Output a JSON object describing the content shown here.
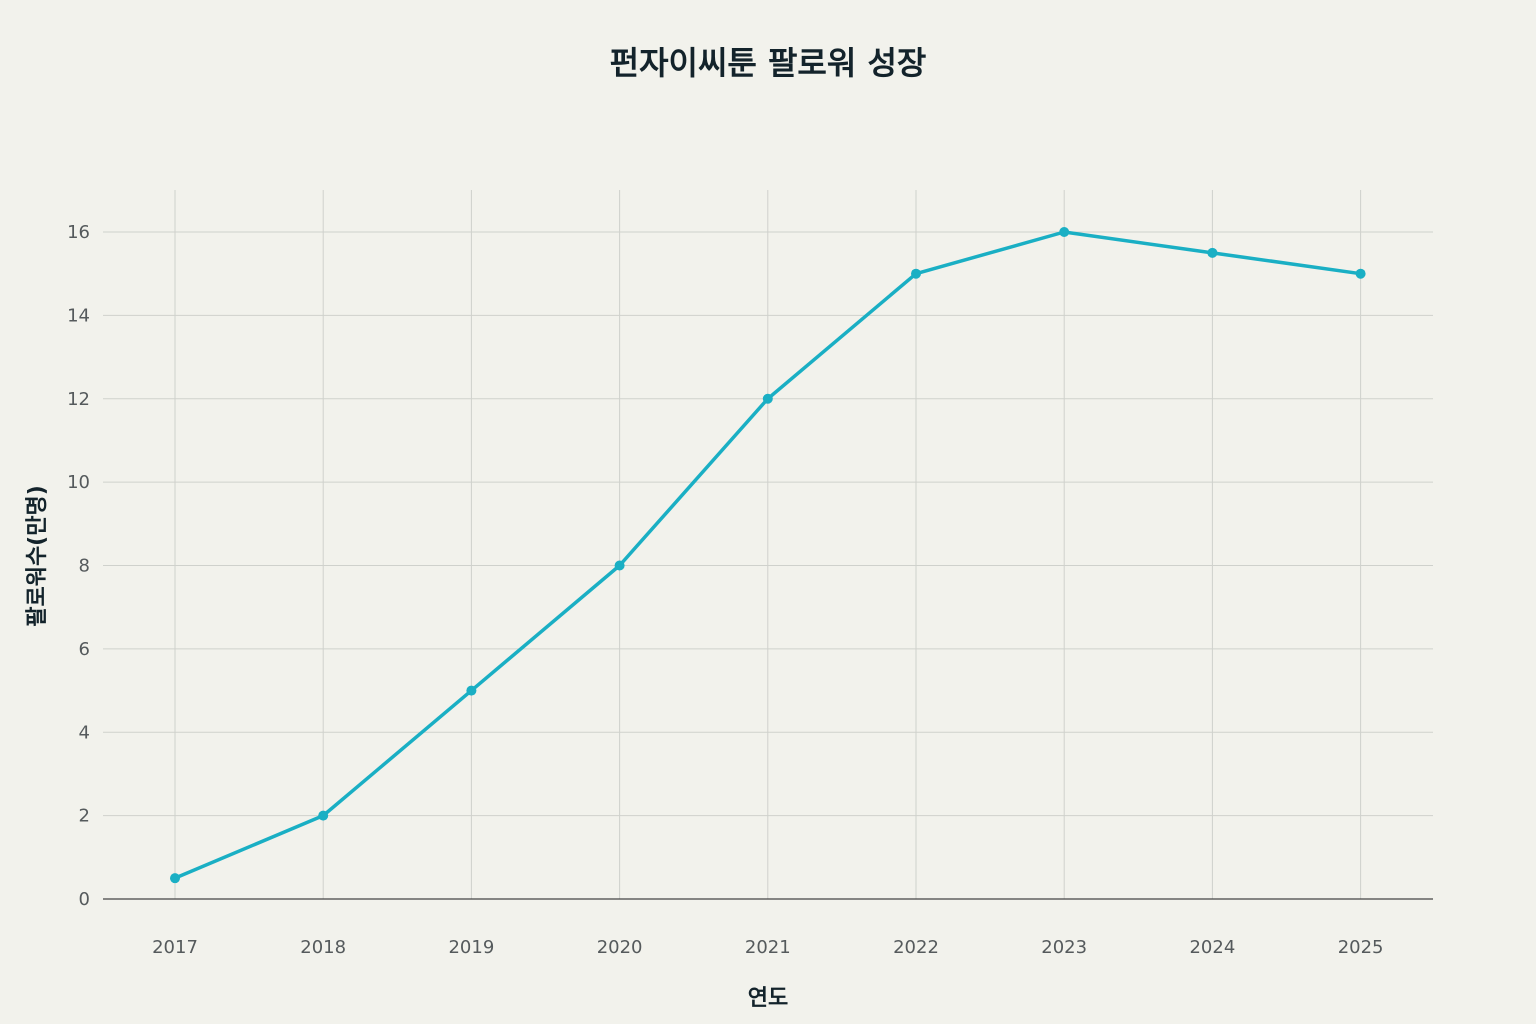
{
  "chart_data": {
    "type": "line",
    "title": "펀자이씨툰 팔로워 성장",
    "xlabel": "연도",
    "ylabel": "팔로워수(만명)",
    "x": [
      2017,
      2018,
      2019,
      2020,
      2021,
      2022,
      2023,
      2024,
      2025
    ],
    "series": [
      {
        "name": "",
        "values": [
          0.5,
          2,
          5,
          8,
          12,
          15,
          16,
          15.5,
          15
        ],
        "color": "#1aafc4"
      }
    ],
    "ylim": [
      0,
      17
    ],
    "yticks": [
      0,
      2,
      4,
      6,
      8,
      10,
      12,
      14,
      16
    ],
    "grid": true,
    "legend": "none"
  }
}
